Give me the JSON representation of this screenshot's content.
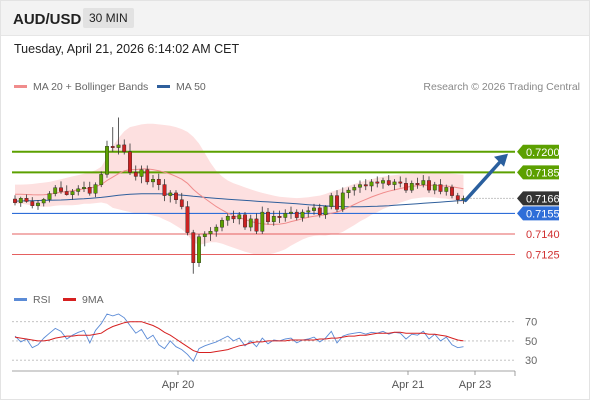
{
  "header": {
    "symbol": "AUD/USD",
    "timeframe": "30 MIN"
  },
  "datetime": "Tuesday, April 21, 2026 6:14:02 AM CET",
  "legend": {
    "ma_bb": {
      "label": "MA 20 + Bollinger Bands",
      "color": "#f08c8c"
    },
    "ma50": {
      "label": "MA 50",
      "color": "#2f5f9c"
    },
    "rsi": {
      "label": "RSI",
      "color": "#5b8bd6"
    },
    "rsi_ma": {
      "label": "9MA",
      "color": "#d62020"
    }
  },
  "copyright": "Research © 2026 Trading Central",
  "colors": {
    "resistance": "#5ca000",
    "support": "#e56060",
    "pivot": "#2f6ed8",
    "current": "#333333",
    "arrow": "#2a5f9e",
    "bull_candle": "#5ca000",
    "bear_candle": "#cc2222",
    "band_fill": "#fde0e0"
  },
  "chart_data": {
    "type": "candlestick",
    "ylim": [
      0.71035,
      0.72385
    ],
    "levels": [
      {
        "value": 0.72,
        "label": "0.7200",
        "kind": "resistance"
      },
      {
        "value": 0.7185,
        "label": "0.7185",
        "kind": "resistance"
      },
      {
        "value": 0.7166,
        "label": "0.7166",
        "kind": "current"
      },
      {
        "value": 0.7155,
        "label": "0.7155",
        "kind": "pivot"
      },
      {
        "value": 0.714,
        "label": "0.7140",
        "kind": "support"
      },
      {
        "value": 0.7125,
        "label": "0.7125",
        "kind": "support"
      }
    ],
    "x_ticks": [
      "Apr 20",
      "Apr 21",
      "Apr 23"
    ],
    "candles": [
      [
        0.71655,
        0.71683,
        0.71609,
        0.71628
      ],
      [
        0.71628,
        0.71672,
        0.71598,
        0.71661
      ],
      [
        0.71661,
        0.71688,
        0.71628,
        0.71637
      ],
      [
        0.71637,
        0.71669,
        0.71587,
        0.71606
      ],
      [
        0.71606,
        0.71648,
        0.71576,
        0.71626
      ],
      [
        0.71626,
        0.71663,
        0.71601,
        0.71652
      ],
      [
        0.71652,
        0.71713,
        0.71631,
        0.71695
      ],
      [
        0.71695,
        0.71757,
        0.71675,
        0.71738
      ],
      [
        0.71738,
        0.71784,
        0.71694,
        0.7171
      ],
      [
        0.7171,
        0.71755,
        0.7168,
        0.71687
      ],
      [
        0.71687,
        0.71728,
        0.7165,
        0.7171
      ],
      [
        0.7171,
        0.71756,
        0.71681,
        0.7173
      ],
      [
        0.7173,
        0.71782,
        0.71706,
        0.71741
      ],
      [
        0.71741,
        0.71781,
        0.7168,
        0.71697
      ],
      [
        0.71697,
        0.71777,
        0.71669,
        0.7176
      ],
      [
        0.7176,
        0.71857,
        0.71742,
        0.71835
      ],
      [
        0.71835,
        0.7208,
        0.7181,
        0.7204
      ],
      [
        0.7204,
        0.7218,
        0.72,
        0.7203
      ],
      [
        0.7203,
        0.7225,
        0.7198,
        0.7205
      ],
      [
        0.7205,
        0.7209,
        0.7198,
        0.72
      ],
      [
        0.72,
        0.7206,
        0.7183,
        0.7185
      ],
      [
        0.7185,
        0.719,
        0.7179,
        0.7182
      ],
      [
        0.7182,
        0.719,
        0.7177,
        0.7187
      ],
      [
        0.7187,
        0.719,
        0.7176,
        0.7178
      ],
      [
        0.7178,
        0.7183,
        0.7174,
        0.718
      ],
      [
        0.718,
        0.7184,
        0.7172,
        0.7176
      ],
      [
        0.7176,
        0.718,
        0.7164,
        0.7168
      ],
      [
        0.7168,
        0.7172,
        0.7163,
        0.717
      ],
      [
        0.717,
        0.7172,
        0.7162,
        0.7165
      ],
      [
        0.7165,
        0.717,
        0.7158,
        0.716
      ],
      [
        0.716,
        0.7164,
        0.7139,
        0.7141
      ],
      [
        0.7141,
        0.7143,
        0.7111,
        0.7119
      ],
      [
        0.7119,
        0.714,
        0.7116,
        0.7138
      ],
      [
        0.7138,
        0.7142,
        0.7131,
        0.714
      ],
      [
        0.714,
        0.7145,
        0.7135,
        0.7142
      ],
      [
        0.7142,
        0.7147,
        0.7138,
        0.7145
      ],
      [
        0.7145,
        0.7152,
        0.7142,
        0.715
      ],
      [
        0.715,
        0.7155,
        0.7146,
        0.7153
      ],
      [
        0.7153,
        0.7157,
        0.7148,
        0.7151
      ],
      [
        0.7151,
        0.7156,
        0.7147,
        0.7154
      ],
      [
        0.7154,
        0.7156,
        0.7143,
        0.7145
      ],
      [
        0.7145,
        0.7154,
        0.7142,
        0.7151
      ],
      [
        0.7151,
        0.7155,
        0.714,
        0.7142
      ],
      [
        0.7142,
        0.716,
        0.714,
        0.7156
      ],
      [
        0.7156,
        0.7159,
        0.7147,
        0.7149
      ],
      [
        0.7149,
        0.7157,
        0.7146,
        0.7153
      ],
      [
        0.7153,
        0.7157,
        0.7148,
        0.7152
      ],
      [
        0.7152,
        0.7158,
        0.7149,
        0.7155
      ],
      [
        0.7155,
        0.716,
        0.7151,
        0.7156
      ],
      [
        0.7156,
        0.7158,
        0.715,
        0.7152
      ],
      [
        0.7152,
        0.7158,
        0.7149,
        0.7156
      ],
      [
        0.7156,
        0.716,
        0.7152,
        0.7157
      ],
      [
        0.7157,
        0.7162,
        0.7154,
        0.7159
      ],
      [
        0.7159,
        0.7162,
        0.7152,
        0.7154
      ],
      [
        0.7154,
        0.7161,
        0.7151,
        0.716
      ],
      [
        0.716,
        0.717,
        0.7158,
        0.7168
      ],
      [
        0.7168,
        0.7172,
        0.7156,
        0.7158
      ],
      [
        0.7158,
        0.7174,
        0.7156,
        0.717
      ],
      [
        0.717,
        0.7174,
        0.7166,
        0.7172
      ],
      [
        0.7172,
        0.7176,
        0.7168,
        0.7174
      ],
      [
        0.7174,
        0.7179,
        0.717,
        0.7176
      ],
      [
        0.7176,
        0.718,
        0.7172,
        0.7175
      ],
      [
        0.7175,
        0.718,
        0.7171,
        0.7178
      ],
      [
        0.7178,
        0.7182,
        0.7174,
        0.7177
      ],
      [
        0.7177,
        0.7181,
        0.7173,
        0.7179
      ],
      [
        0.7179,
        0.7183,
        0.7175,
        0.7176
      ],
      [
        0.7176,
        0.718,
        0.7172,
        0.7178
      ],
      [
        0.7178,
        0.7182,
        0.7174,
        0.7177
      ],
      [
        0.7177,
        0.7181,
        0.717,
        0.7172
      ],
      [
        0.7172,
        0.7179,
        0.717,
        0.7177
      ],
      [
        0.7177,
        0.7181,
        0.7173,
        0.7176
      ],
      [
        0.7176,
        0.7183,
        0.7174,
        0.7179
      ],
      [
        0.7179,
        0.7182,
        0.717,
        0.7172
      ],
      [
        0.7172,
        0.7178,
        0.7169,
        0.7176
      ],
      [
        0.7176,
        0.718,
        0.7169,
        0.7171
      ],
      [
        0.7171,
        0.7176,
        0.7168,
        0.7174
      ],
      [
        0.7174,
        0.7176,
        0.7166,
        0.7168
      ],
      [
        0.7168,
        0.717,
        0.7162,
        0.7165
      ],
      [
        0.7165,
        0.7168,
        0.7162,
        0.7166
      ]
    ],
    "ma20": [
      0.7169,
      0.7169,
      0.71688,
      0.71686,
      0.71685,
      0.71686,
      0.7169,
      0.71698,
      0.71705,
      0.7171,
      0.71715,
      0.71722,
      0.7173,
      0.71735,
      0.71745,
      0.7176,
      0.7179,
      0.71815,
      0.7184,
      0.7186,
      0.7187,
      0.7187,
      0.71875,
      0.71875,
      0.7187,
      0.71862,
      0.7185,
      0.71838,
      0.7182,
      0.718,
      0.7177,
      0.71725,
      0.7169,
      0.7166,
      0.7163,
      0.716,
      0.71575,
      0.71552,
      0.71535,
      0.7152,
      0.71505,
      0.71492,
      0.7148,
      0.71475,
      0.7147,
      0.7147,
      0.71472,
      0.71478,
      0.7149,
      0.715,
      0.71512,
      0.71522,
      0.7153,
      0.71535,
      0.7154,
      0.71552,
      0.7156,
      0.71575,
      0.71595,
      0.71615,
      0.71635,
      0.71652,
      0.7167,
      0.71685,
      0.717,
      0.71712,
      0.71722,
      0.71732,
      0.7174,
      0.71748,
      0.71752,
      0.71755,
      0.71756,
      0.71755,
      0.71752,
      0.7175,
      0.71745,
      0.71738,
      0.7173
    ],
    "bb_upper": [
      0.7176,
      0.7176,
      0.71762,
      0.71765,
      0.7177,
      0.71775,
      0.7178,
      0.7179,
      0.718,
      0.7181,
      0.7182,
      0.7183,
      0.7184,
      0.7185,
      0.71865,
      0.7189,
      0.7196,
      0.7204,
      0.721,
      0.7215,
      0.7218,
      0.7219,
      0.722,
      0.72205,
      0.72205,
      0.722,
      0.72195,
      0.7219,
      0.7218,
      0.72165,
      0.72145,
      0.7211,
      0.7206,
      0.7199,
      0.7192,
      0.7186,
      0.7182,
      0.7179,
      0.7177,
      0.71755,
      0.7174,
      0.71725,
      0.71712,
      0.717,
      0.7169,
      0.7168,
      0.71672,
      0.71668,
      0.71665,
      0.71662,
      0.71664,
      0.71668,
      0.71674,
      0.7168,
      0.71692,
      0.71708,
      0.7172,
      0.71735,
      0.7175,
      0.71765,
      0.71778,
      0.7179,
      0.718,
      0.7181,
      0.71818,
      0.71825,
      0.7183,
      0.71835,
      0.71838,
      0.7184,
      0.71842,
      0.71843,
      0.71844,
      0.71844,
      0.71843,
      0.71842,
      0.7184,
      0.71836,
      0.71832
    ],
    "bb_lower": [
      0.7162,
      0.7162,
      0.71615,
      0.71608,
      0.716,
      0.71598,
      0.716,
      0.71606,
      0.7161,
      0.7161,
      0.7161,
      0.71614,
      0.7162,
      0.7162,
      0.71625,
      0.7163,
      0.7162,
      0.7159,
      0.7158,
      0.7157,
      0.7156,
      0.7155,
      0.7155,
      0.71545,
      0.71535,
      0.71525,
      0.71505,
      0.71486,
      0.7146,
      0.71435,
      0.71395,
      0.7134,
      0.7132,
      0.7133,
      0.7134,
      0.7134,
      0.7133,
      0.71314,
      0.713,
      0.71285,
      0.7127,
      0.71259,
      0.71248,
      0.7125,
      0.7125,
      0.7126,
      0.71272,
      0.71288,
      0.71315,
      0.71338,
      0.7136,
      0.71376,
      0.71386,
      0.7139,
      0.71388,
      0.71396,
      0.714,
      0.71415,
      0.7144,
      0.71465,
      0.71492,
      0.71514,
      0.7154,
      0.7156,
      0.71582,
      0.71599,
      0.71614,
      0.71629,
      0.71642,
      0.71656,
      0.71662,
      0.71667,
      0.71668,
      0.71666,
      0.71661,
      0.71658,
      0.7165,
      0.7164,
      0.71628
    ],
    "ma50": [
      0.7164,
      0.71641,
      0.71642,
      0.71643,
      0.71644,
      0.71645,
      0.71646,
      0.71647,
      0.71648,
      0.7165,
      0.71652,
      0.71655,
      0.71657,
      0.7166,
      0.71663,
      0.71667,
      0.71672,
      0.71677,
      0.71682,
      0.71686,
      0.7169,
      0.71692,
      0.71693,
      0.71694,
      0.71694,
      0.71693,
      0.71692,
      0.7169,
      0.71687,
      0.71684,
      0.7168,
      0.71675,
      0.71671,
      0.71667,
      0.71663,
      0.7166,
      0.71657,
      0.71654,
      0.71651,
      0.71648,
      0.71645,
      0.71642,
      0.71639,
      0.71636,
      0.71634,
      0.71632,
      0.71629,
      0.71626,
      0.71623,
      0.7162,
      0.71617,
      0.71614,
      0.71611,
      0.71608,
      0.71605,
      0.71603,
      0.71601,
      0.716,
      0.71599,
      0.71599,
      0.71599,
      0.716,
      0.71601,
      0.71602,
      0.71604,
      0.71606,
      0.71609,
      0.71612,
      0.71615,
      0.71618,
      0.71621,
      0.71624,
      0.71627,
      0.7163,
      0.71633,
      0.71636,
      0.71639,
      0.71642,
      0.71645
    ],
    "rsi": {
      "ylim": [
        25,
        78
      ],
      "ticks": [
        70,
        50,
        30
      ],
      "rsi_values": [
        55,
        49,
        52,
        43,
        46,
        53,
        58,
        63,
        60,
        52,
        56,
        59,
        61,
        48,
        61,
        68,
        78,
        76,
        78,
        74,
        66,
        58,
        62,
        52,
        56,
        46,
        42,
        50,
        44,
        41,
        36,
        29,
        42,
        45,
        47,
        49,
        52,
        55,
        50,
        53,
        45,
        50,
        44,
        53,
        47,
        51,
        50,
        52,
        53,
        48,
        51,
        52,
        54,
        49,
        53,
        60,
        48,
        55,
        57,
        58,
        59,
        57,
        59,
        58,
        60,
        57,
        59,
        58,
        52,
        57,
        56,
        60,
        52,
        57,
        50,
        54,
        46,
        43,
        44
      ],
      "ma_values": [
        54,
        53,
        52,
        51,
        50,
        50,
        51,
        53,
        54,
        55,
        55,
        56,
        56,
        56,
        57,
        58,
        62,
        65,
        67,
        69,
        70,
        70,
        70,
        68,
        66,
        63,
        59,
        56,
        52,
        48,
        44,
        40,
        38,
        38,
        38,
        39,
        40,
        41,
        43,
        45,
        46,
        48,
        49,
        49,
        50,
        50,
        50,
        50,
        51,
        51,
        51,
        51,
        51,
        52,
        52,
        53,
        53,
        54,
        55,
        55,
        56,
        56,
        57,
        58,
        58,
        58,
        59,
        59,
        58,
        58,
        58,
        58,
        57,
        57,
        56,
        55,
        53,
        51,
        50
      ]
    }
  }
}
